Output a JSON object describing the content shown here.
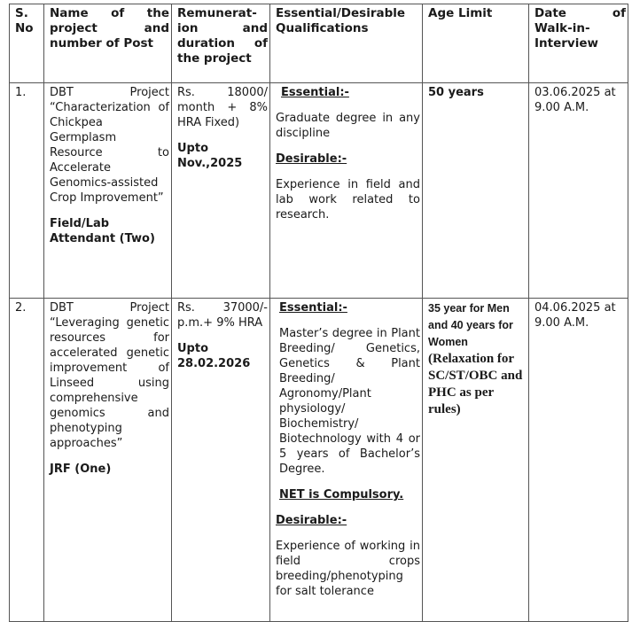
{
  "headers": [
    "S. No",
    "Name of the project and number of Post",
    "Remunerat-ion and duration of the project",
    "Essential/Desirable Qualifications",
    "Age Limit",
    "Date of Walk-in-Interview"
  ],
  "rows": [
    {
      "sno": "1.",
      "project": "DBT Project “Characterization of Chickpea Germplasm Resource to Accelerate Genomics-assisted Crop Improvement”",
      "post": "Field/Lab Attendant (Two)",
      "remuneration": "Rs. 18000/ month + 8% HRA Fixed)",
      "duration": "Upto Nov.,2025",
      "essential_label": "Essential:-",
      "essential": "Graduate degree in any discipline",
      "desirable_label": "Desirable:-",
      "desirable": "Experience in field and lab work related to research.",
      "age": "50 years",
      "date": "03.06.2025 at 9.00 A.M."
    },
    {
      "sno": "2.",
      "project": "DBT Project “Leveraging genetic resources for accelerated genetic improvement of Linseed using comprehensive genomics and phenotyping approaches”",
      "post": "JRF (One)",
      "remuneration": "Rs. 37000/- p.m.+ 9% HRA",
      "duration": "Upto 28.02.2026",
      "essential_label": "Essential:-",
      "essential": "Master’s degree in Plant Breeding/ Genetics, Genetics & Plant Breeding/ Agronomy/Plant physiology/ Biochemistry/ Biotechnology with 4 or 5 years of Bachelor’s Degree.",
      "net": "NET is Compulsory.",
      "desirable_label": "Desirable:-",
      "desirable": "Experience of working in field crops breeding/phenotyping for salt tolerance",
      "age": "35 year for Men and 40 years for Women",
      "age_note": "(Relaxation for SC/ST/OBC and PHC as per rules)",
      "date": "04.06.2025 at 9.00 A.M."
    }
  ]
}
